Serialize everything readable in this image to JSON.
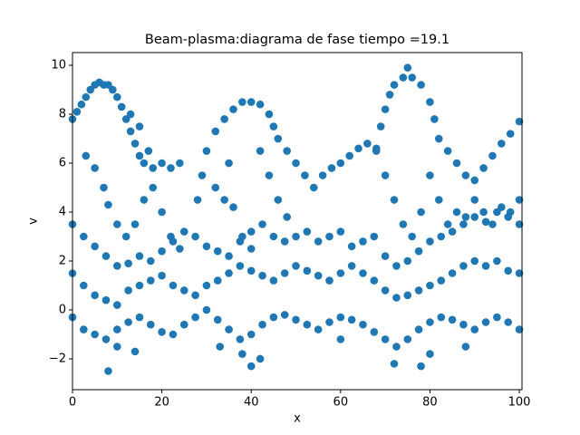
{
  "chart_data": {
    "type": "scatter",
    "title": "Beam-plasma:diagrama de fase  tiempo =19.1",
    "x_label": "x",
    "y_label": "v",
    "color": "#1f77b4",
    "xlim": [
      0,
      100.6
    ],
    "ylim": [
      -3.26,
      10.52
    ],
    "xticks": [
      0,
      20,
      40,
      60,
      80,
      100
    ],
    "yticks": [
      {
        "value": -2,
        "label": "−2"
      },
      0,
      2,
      4,
      6,
      8,
      10
    ],
    "x": [
      0,
      1,
      2,
      3,
      4,
      5,
      6,
      7,
      8,
      9,
      10,
      11,
      12,
      13,
      14,
      15,
      16,
      18,
      20,
      22,
      24,
      3,
      5,
      7,
      8,
      10,
      12,
      14,
      16,
      18,
      20,
      22,
      24,
      13,
      15,
      17,
      28,
      29,
      30,
      32,
      34,
      36,
      38,
      40,
      42,
      44,
      45,
      46,
      48,
      50,
      52,
      54,
      56,
      58,
      60,
      62,
      64,
      66,
      68,
      32,
      34,
      36,
      38,
      40,
      35,
      42,
      44,
      46,
      48,
      68,
      69,
      70,
      71,
      72,
      74,
      75,
      76,
      78,
      80,
      81,
      82,
      84,
      86,
      88,
      90,
      92,
      94,
      96,
      98,
      100,
      70,
      72,
      74,
      76,
      78,
      80,
      82,
      84,
      86,
      88,
      90,
      92,
      94,
      96,
      98,
      100,
      0,
      2.5,
      5,
      7.5,
      10,
      12.5,
      15,
      17.5,
      20,
      22.5,
      25,
      27.5,
      30,
      32.5,
      35,
      37.5,
      40,
      42.5,
      45,
      47.5,
      50,
      52.5,
      55,
      57.5,
      60,
      62.5,
      65,
      67.5,
      70,
      72.5,
      75,
      77.5,
      80,
      82.5,
      85,
      87.5,
      90,
      92.5,
      95,
      97.5,
      100,
      0,
      2.5,
      5,
      7.5,
      10,
      12.5,
      15,
      17.5,
      20,
      22.5,
      25,
      27.5,
      30,
      32.5,
      35,
      37.5,
      40,
      42.5,
      45,
      47.5,
      50,
      52.5,
      55,
      57.5,
      60,
      62.5,
      65,
      67.5,
      70,
      72.5,
      75,
      77.5,
      80,
      82.5,
      85,
      87.5,
      90,
      92.5,
      95,
      97.5,
      100,
      0,
      2.5,
      5,
      7.5,
      10,
      12.5,
      15,
      17.5,
      20,
      22.5,
      25,
      27.5,
      30,
      32.5,
      35,
      37.5,
      40,
      42.5,
      45,
      47.5,
      50,
      52.5,
      55,
      57.5,
      60,
      62.5,
      65,
      67.5,
      70,
      72.5,
      75,
      77.5,
      80,
      82.5,
      85,
      87.5,
      90,
      92.5,
      95,
      97.5,
      100,
      8,
      10,
      14,
      38,
      40,
      42,
      72,
      78,
      80,
      88,
      33,
      60
    ],
    "y": [
      7.8,
      8.1,
      8.4,
      8.7,
      9.0,
      9.2,
      9.3,
      9.2,
      9.2,
      9.0,
      8.7,
      8.3,
      7.8,
      7.3,
      6.8,
      6.3,
      6.0,
      5.8,
      6.0,
      5.8,
      6.0,
      6.3,
      5.8,
      5.0,
      4.3,
      3.5,
      3.0,
      3.5,
      4.5,
      5.0,
      4.0,
      3.0,
      2.5,
      8.0,
      7.5,
      6.5,
      4.5,
      5.5,
      6.5,
      7.3,
      7.8,
      8.2,
      8.5,
      8.5,
      8.4,
      8.0,
      7.5,
      7.0,
      6.5,
      6.0,
      5.5,
      5.0,
      5.5,
      5.8,
      6.0,
      6.3,
      6.6,
      6.8,
      6.6,
      5.0,
      4.5,
      4.2,
      3.0,
      2.5,
      6.0,
      6.5,
      5.5,
      4.5,
      3.8,
      6.5,
      7.5,
      8.2,
      8.8,
      9.2,
      9.5,
      9.9,
      9.5,
      9.2,
      8.5,
      7.8,
      7.0,
      6.5,
      6.0,
      5.5,
      5.3,
      5.8,
      6.3,
      6.8,
      7.2,
      7.7,
      5.5,
      4.5,
      3.5,
      3.0,
      4.0,
      5.5,
      4.5,
      3.5,
      4.0,
      3.8,
      4.5,
      4.0,
      3.5,
      4.2,
      4.0,
      4.5,
      3.5,
      3.0,
      2.6,
      2.2,
      1.8,
      1.9,
      2.2,
      2.0,
      2.4,
      2.8,
      3.2,
      3.0,
      2.6,
      2.4,
      2.2,
      2.8,
      3.2,
      3.5,
      3.0,
      2.8,
      3.0,
      3.2,
      2.8,
      3.0,
      3.2,
      2.6,
      2.8,
      3.0,
      2.2,
      1.8,
      2.0,
      2.4,
      2.8,
      3.0,
      3.2,
      3.5,
      3.8,
      3.6,
      4.0,
      3.8,
      3.5,
      1.5,
      1.0,
      0.6,
      0.4,
      0.2,
      0.8,
      1.0,
      1.2,
      1.4,
      1.0,
      0.8,
      0.6,
      1.0,
      1.2,
      1.5,
      1.8,
      1.6,
      1.4,
      1.2,
      1.5,
      1.8,
      1.6,
      1.4,
      1.2,
      1.5,
      1.8,
      1.5,
      1.2,
      0.8,
      0.5,
      0.6,
      0.8,
      1.0,
      1.2,
      1.5,
      1.8,
      2.0,
      1.8,
      2.0,
      1.6,
      1.5,
      -0.3,
      -0.8,
      -1.0,
      -1.2,
      -0.8,
      -0.5,
      -0.3,
      -0.6,
      -0.9,
      -1.0,
      -0.6,
      -0.3,
      0.0,
      -0.4,
      -0.8,
      -1.2,
      -1.0,
      -0.6,
      -0.3,
      -0.2,
      -0.4,
      -0.6,
      -0.8,
      -0.5,
      -0.3,
      -0.4,
      -0.6,
      -0.9,
      -1.2,
      -1.5,
      -1.2,
      -0.8,
      -0.5,
      -0.3,
      -0.4,
      -0.6,
      -0.8,
      -0.5,
      -0.3,
      -0.5,
      -0.8,
      -2.5,
      -1.5,
      -1.7,
      -1.8,
      -2.3,
      -2.0,
      -2.2,
      -2.3,
      -1.8,
      -1.5,
      -1.5,
      -1.2
    ]
  }
}
